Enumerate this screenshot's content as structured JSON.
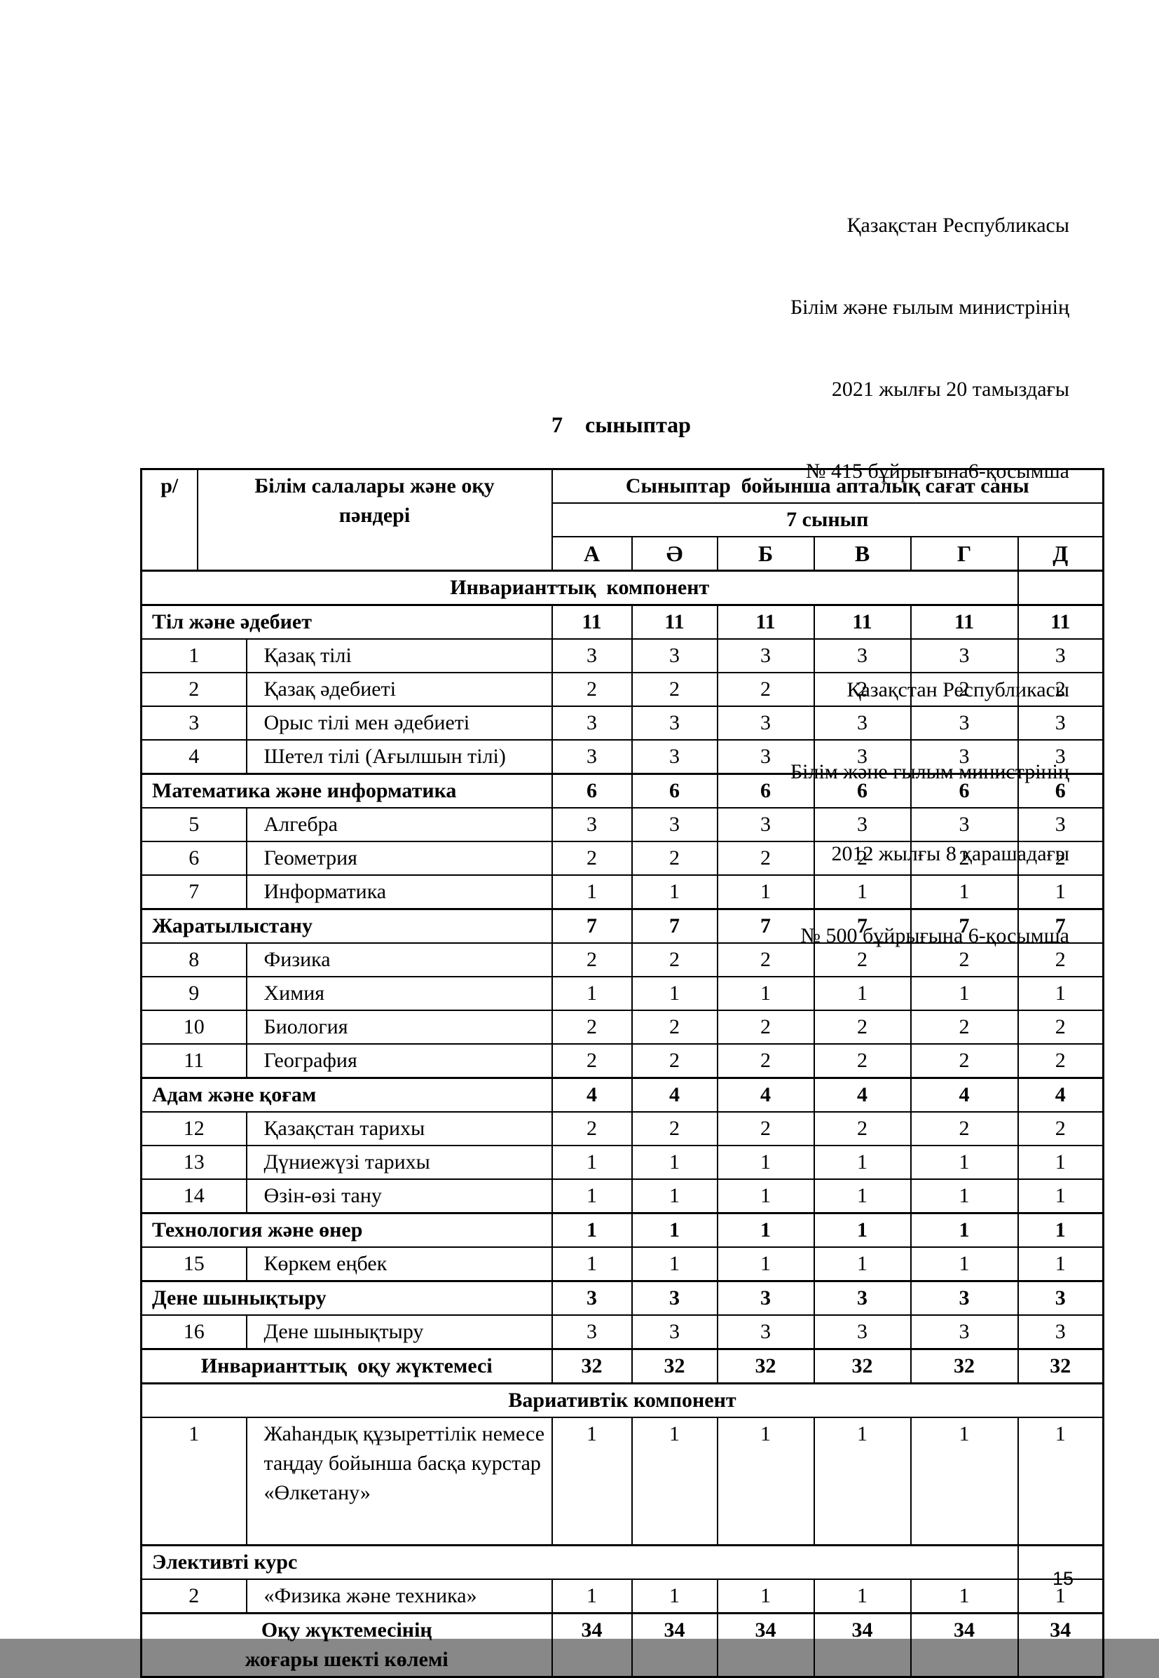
{
  "colors": {
    "text": "#000000",
    "background": "#ffffff",
    "border": "#000000"
  },
  "page": {
    "header_blocks": [
      {
        "lines": [
          "Қазақстан Республикасы",
          "Білім және ғылым министрінің",
          "2021 жылғы 20 тамыздағы",
          "№ 415 бұйрығына6-қосымша"
        ]
      },
      {
        "lines": [
          "Қазақстан Республикасы",
          "Білім және ғылым министрінің",
          "2012 жылғы 8 қарашадағы",
          "№ 500 бұйрығына 6-қосымша"
        ]
      }
    ],
    "title": "7    сыныптар",
    "page_number": "15"
  },
  "table": {
    "header": {
      "col1": "р/",
      "col2": "Білім салалары және оқу пәндері",
      "span_title": "Сыныптар  бойынша апталық сағат саны",
      "grade_label": "7 сынып",
      "class_columns": [
        "А",
        "Ә",
        "Б",
        "В",
        "Г",
        "Д"
      ]
    },
    "rows": [
      {
        "type": "span7",
        "label": "Инварианттық  компонент"
      },
      {
        "type": "section",
        "label": "Тіл және әдебиет",
        "values": [
          "11",
          "11",
          "11",
          "11",
          "11",
          "11"
        ]
      },
      {
        "type": "subject",
        "num": "1",
        "label": "Қазақ тілі",
        "values": [
          "3",
          "3",
          "3",
          "3",
          "3",
          "3"
        ]
      },
      {
        "type": "subject",
        "num": "2",
        "label": "Қазақ әдебиеті",
        "values": [
          "2",
          "2",
          "2",
          "2",
          "2",
          "2"
        ]
      },
      {
        "type": "subject",
        "num": "3",
        "label": "Орыс тілі мен әдебиеті",
        "values": [
          "3",
          "3",
          "3",
          "3",
          "3",
          "3"
        ]
      },
      {
        "type": "subject",
        "num": "4",
        "label": "Шетел тілі (Ағылшын тілі)",
        "values": [
          "3",
          "3",
          "3",
          "3",
          "3",
          "3"
        ]
      },
      {
        "type": "section",
        "label": "Математика және информатика",
        "values": [
          "6",
          "6",
          "6",
          "6",
          "6",
          "6"
        ]
      },
      {
        "type": "subject",
        "num": "5",
        "label": "Алгебра",
        "values": [
          "3",
          "3",
          "3",
          "3",
          "3",
          "3"
        ]
      },
      {
        "type": "subject",
        "num": "6",
        "label": "Геометрия",
        "values": [
          "2",
          "2",
          "2",
          "2",
          "2",
          "2"
        ]
      },
      {
        "type": "subject",
        "num": "7",
        "label": "Информатика",
        "values": [
          "1",
          "1",
          "1",
          "1",
          "1",
          "1"
        ]
      },
      {
        "type": "section",
        "label": "Жаратылыстану",
        "values": [
          "7",
          "7",
          "7",
          "7",
          "7",
          "7"
        ]
      },
      {
        "type": "subject",
        "num": "8",
        "label": "Физика",
        "values": [
          "2",
          "2",
          "2",
          "2",
          "2",
          "2"
        ]
      },
      {
        "type": "subject",
        "num": "9",
        "label": "Химия",
        "values": [
          "1",
          "1",
          "1",
          "1",
          "1",
          "1"
        ]
      },
      {
        "type": "subject",
        "num": "10",
        "label": "Биология",
        "values": [
          "2",
          "2",
          "2",
          "2",
          "2",
          "2"
        ]
      },
      {
        "type": "subject",
        "num": "11",
        "label": "География",
        "values": [
          "2",
          "2",
          "2",
          "2",
          "2",
          "2"
        ]
      },
      {
        "type": "section",
        "label": "Адам және қоғам",
        "values": [
          "4",
          "4",
          "4",
          "4",
          "4",
          "4"
        ]
      },
      {
        "type": "subject",
        "num": "12",
        "label": "Қазақстан тарихы",
        "values": [
          "2",
          "2",
          "2",
          "2",
          "2",
          "2"
        ]
      },
      {
        "type": "subject",
        "num": "13",
        "label": "Дүниежүзі тарихы",
        "values": [
          "1",
          "1",
          "1",
          "1",
          "1",
          "1"
        ]
      },
      {
        "type": "subject",
        "num": "14",
        "label": "Өзін-өзі тану",
        "values": [
          "1",
          "1",
          "1",
          "1",
          "1",
          "1"
        ]
      },
      {
        "type": "section",
        "label": "Технология және өнер",
        "values": [
          "1",
          "1",
          "1",
          "1",
          "1",
          "1"
        ]
      },
      {
        "type": "subject",
        "num": "15",
        "label": "Көркем еңбек",
        "values": [
          "1",
          "1",
          "1",
          "1",
          "1",
          "1"
        ]
      },
      {
        "type": "section",
        "label": "Дене шынықтыру",
        "values": [
          "3",
          "3",
          "3",
          "3",
          "3",
          "3"
        ]
      },
      {
        "type": "subject",
        "num": "16",
        "label": "Дене шынықтыру",
        "values": [
          "3",
          "3",
          "3",
          "3",
          "3",
          "3"
        ]
      },
      {
        "type": "total",
        "label": "Инварианттық  оқу жүктемесі",
        "values": [
          "32",
          "32",
          "32",
          "32",
          "32",
          "32"
        ]
      },
      {
        "type": "span8",
        "label": "Вариативтік компонент"
      },
      {
        "type": "subject",
        "num": "1",
        "tall": true,
        "label": "Жаһандық құзыреттілік немесе таңдау бойынша басқа курстар «Өлкетану»",
        "values": [
          "1",
          "1",
          "1",
          "1",
          "1",
          "1"
        ]
      },
      {
        "type": "span7left",
        "label": "Элективті курс"
      },
      {
        "type": "subject",
        "num": "2",
        "label": "«Физика және техника»",
        "values": [
          "1",
          "1",
          "1",
          "1",
          "1",
          "1"
        ]
      },
      {
        "type": "total",
        "narrow": true,
        "label": "Оқу жүктемесінің жоғары шекті көлемі",
        "values": [
          "34",
          "34",
          "34",
          "34",
          "34",
          "34"
        ]
      }
    ]
  }
}
